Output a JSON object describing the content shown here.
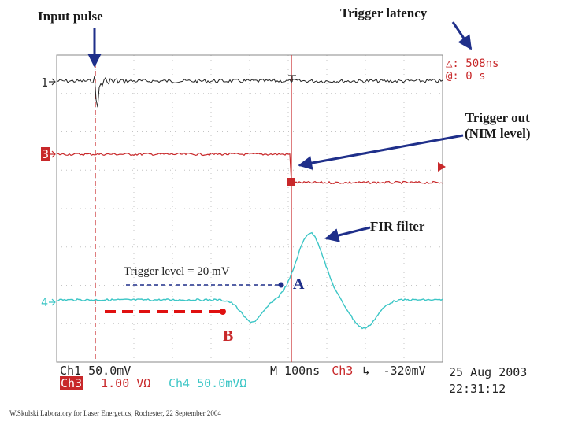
{
  "annotations": {
    "input_pulse": "Input pulse",
    "trigger_latency": "Trigger latency",
    "trigger_out_line1": "Trigger out",
    "trigger_out_line2": "(NIM level)",
    "fir_filter": "FIR filter",
    "trigger_level": "Trigger level = 20 mV",
    "marker_a": "A",
    "marker_b": "B"
  },
  "cursor_readout": {
    "delta": "△: 508ns",
    "at": "@: 0 s"
  },
  "channel_markers": {
    "ch1": "1",
    "ch3": "3",
    "ch4": "4"
  },
  "status_bar": {
    "ch1": "Ch1  50.0mV",
    "ch3_label": "Ch3",
    "ch3_value": "1.00 VΩ",
    "ch4": "Ch4  50.0mVΩ",
    "timebase": "M  100ns",
    "trig_source": "Ch3",
    "trig_slope": "↳",
    "trig_level": "-320mV",
    "date": "25 Aug 2003",
    "time": "22:31:12"
  },
  "footer_credit": "W.Skulski   Laboratory for Laser Energetics, Rochester, 22 September 2004",
  "colors": {
    "ch1_trace": "#222222",
    "ch3_trace": "#c8282a",
    "ch4_trace": "#3cc6c6",
    "arrow": "#1f2f8a",
    "dash_red": "#e01010",
    "grid": "#bdbdbd"
  }
}
